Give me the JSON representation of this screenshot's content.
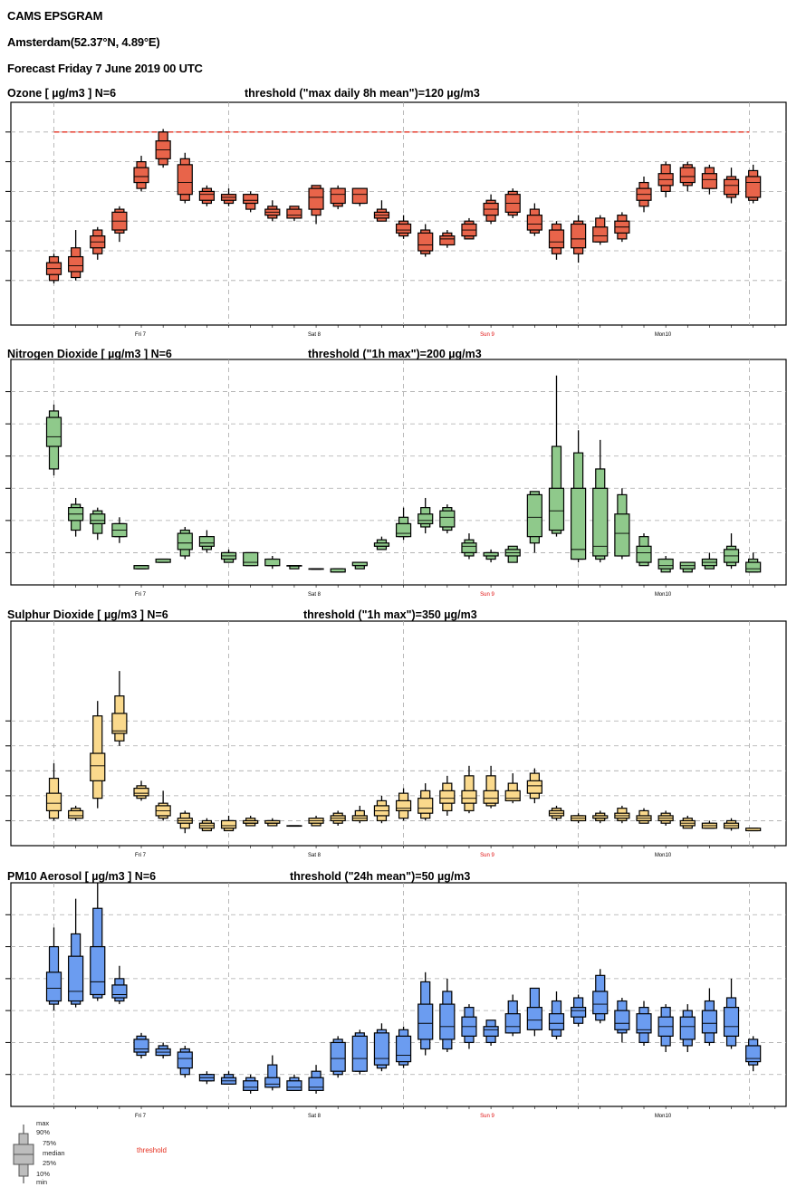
{
  "header": {
    "title": "CAMS EPSGRAM",
    "location": "Amsterdam(52.37°N, 4.89°E)",
    "forecast": "Forecast Friday  7 June 2019 00 UTC"
  },
  "days": [
    {
      "label": "Fri 7",
      "color": "#000000"
    },
    {
      "label": "Sat 8",
      "color": "#000000"
    },
    {
      "label": "Sun 9",
      "color": "#e01010"
    },
    {
      "label": "Mon10",
      "color": "#000000"
    }
  ],
  "legend": {
    "labels": [
      "max",
      "90%",
      "75%",
      "median",
      "25%",
      "10%",
      "min"
    ],
    "threshold_label": "threshold"
  },
  "chart_data": [
    {
      "type": "box",
      "title": "Ozone [ µg/m3 ]   N=6",
      "threshold_text": "threshold (\"max daily 8h mean\")=120 µg/m3",
      "threshold": 120,
      "show_threshold": true,
      "color": "#e8644a",
      "ylim": [
        55,
        130
      ],
      "ytick_values": [
        70,
        80,
        90,
        100,
        110,
        120
      ],
      "boxes": [
        [
          69,
          70,
          72,
          74,
          76,
          78,
          79
        ],
        [
          70,
          71,
          73,
          75,
          78,
          81,
          87
        ],
        [
          77,
          79,
          81,
          83,
          85,
          87,
          88
        ],
        [
          83,
          86,
          87,
          90,
          93,
          94,
          95
        ],
        [
          100,
          101,
          103,
          105,
          108,
          110,
          112
        ],
        [
          108,
          109,
          111,
          114,
          117,
          120,
          121
        ],
        [
          96,
          97,
          99,
          103,
          109,
          111,
          113
        ],
        [
          95,
          96,
          97,
          99,
          100,
          101,
          102
        ],
        [
          95,
          96,
          97,
          98,
          99,
          99,
          101
        ],
        [
          93,
          94,
          96,
          97,
          99,
          99,
          100
        ],
        [
          90,
          91,
          92,
          93,
          94,
          95,
          97
        ],
        [
          90,
          91,
          91,
          92,
          94,
          95,
          95
        ],
        [
          89,
          92,
          94,
          98,
          101,
          102,
          102
        ],
        [
          94,
          95,
          96,
          99,
          101,
          101,
          102
        ],
        [
          95,
          96,
          96,
          99,
          101,
          101,
          101
        ],
        [
          90,
          90,
          91,
          92,
          93,
          94,
          97
        ],
        [
          84,
          85,
          86,
          87,
          89,
          90,
          92
        ],
        [
          78,
          79,
          80,
          82,
          86,
          87,
          89
        ],
        [
          81,
          82,
          82,
          84,
          85,
          86,
          87
        ],
        [
          84,
          84,
          85,
          87,
          89,
          90,
          91
        ],
        [
          89,
          90,
          92,
          94,
          96,
          97,
          99
        ],
        [
          91,
          92,
          93,
          96,
          99,
          100,
          101
        ],
        [
          85,
          86,
          87,
          89,
          92,
          94,
          96
        ],
        [
          77,
          79,
          81,
          83,
          87,
          89,
          90
        ],
        [
          76,
          79,
          81,
          84,
          89,
          90,
          92
        ],
        [
          82,
          83,
          83,
          85,
          88,
          91,
          92
        ],
        [
          83,
          84,
          86,
          88,
          90,
          92,
          93
        ],
        [
          93,
          95,
          97,
          99,
          101,
          103,
          105
        ],
        [
          98,
          100,
          102,
          104,
          106,
          109,
          110
        ],
        [
          100,
          102,
          103,
          105,
          108,
          109,
          110
        ],
        [
          99,
          101,
          101,
          104,
          106,
          108,
          109
        ],
        [
          96,
          98,
          99,
          102,
          104,
          105,
          108
        ],
        [
          96,
          97,
          98,
          103,
          105,
          107,
          109
        ]
      ]
    },
    {
      "type": "box",
      "title": "Nitrogen Dioxide [ µg/m3 ]   N=6",
      "threshold_text": "threshold (\"1h max\")=200 µg/m3",
      "threshold": 200,
      "show_threshold": false,
      "color": "#8fc98b",
      "ylim": [
        0,
        70
      ],
      "ytick_values": [
        10,
        20,
        30,
        40,
        50,
        60
      ],
      "boxes": [
        [
          34,
          36,
          43,
          46,
          52,
          54,
          56
        ],
        [
          15,
          17,
          20,
          22,
          24,
          25,
          27
        ],
        [
          14,
          16,
          19,
          20,
          22,
          23,
          24
        ],
        [
          13,
          15,
          15,
          17,
          19,
          19,
          21
        ],
        [
          5,
          5,
          5,
          6,
          6,
          6,
          6
        ],
        [
          7,
          7,
          7,
          8,
          8,
          8,
          8
        ],
        [
          8,
          9,
          11,
          13,
          16,
          17,
          18
        ],
        [
          10,
          11,
          12,
          13,
          15,
          15,
          17
        ],
        [
          7,
          7,
          8,
          9,
          10,
          10,
          11
        ],
        [
          6,
          6,
          6,
          7,
          10,
          10,
          10
        ],
        [
          5,
          6,
          6,
          6,
          8,
          8,
          9
        ],
        [
          5,
          5,
          6,
          6,
          6,
          6,
          6
        ],
        [
          5,
          5,
          5,
          5,
          5,
          5,
          5
        ],
        [
          4,
          4,
          4,
          4,
          5,
          5,
          5
        ],
        [
          5,
          5,
          6,
          6,
          7,
          7,
          7
        ],
        [
          11,
          11,
          12,
          12,
          13,
          14,
          15
        ],
        [
          14,
          15,
          15,
          16,
          19,
          21,
          24
        ],
        [
          16,
          18,
          19,
          20,
          22,
          24,
          27
        ],
        [
          16,
          17,
          18,
          21,
          23,
          24,
          25
        ],
        [
          8,
          9,
          10,
          12,
          13,
          14,
          16
        ],
        [
          7,
          8,
          9,
          9,
          10,
          10,
          11
        ],
        [
          7,
          7,
          9,
          10,
          11,
          12,
          12
        ],
        [
          10,
          13,
          15,
          21,
          28,
          29,
          29
        ],
        [
          15,
          16,
          17,
          23,
          30,
          43,
          65
        ],
        [
          7,
          8,
          8,
          11,
          30,
          41,
          48
        ],
        [
          7,
          8,
          9,
          12,
          30,
          36,
          45
        ],
        [
          8,
          9,
          9,
          16,
          22,
          28,
          30
        ],
        [
          6,
          6,
          7,
          10,
          12,
          15,
          16
        ],
        [
          4,
          4,
          5,
          6,
          8,
          8,
          9
        ],
        [
          4,
          4,
          5,
          6,
          7,
          7,
          7
        ],
        [
          5,
          5,
          6,
          7,
          8,
          8,
          10
        ],
        [
          5,
          6,
          7,
          9,
          11,
          12,
          16
        ],
        [
          4,
          4,
          4,
          5,
          7,
          8,
          10
        ]
      ]
    },
    {
      "type": "box",
      "title": "Sulphur Dioxide [ µg/m3 ]   N=6",
      "threshold_text": "threshold (\"1h max\")=350 µg/m3",
      "threshold": 350,
      "show_threshold": false,
      "color": "#fad98c",
      "ylim": [
        0,
        9
      ],
      "ytick_values": [
        1,
        2,
        3,
        4,
        5
      ],
      "boxes": [
        [
          1.0,
          1.1,
          1.4,
          1.7,
          2.1,
          2.7,
          3.3
        ],
        [
          1.0,
          1.1,
          1.1,
          1.2,
          1.4,
          1.5,
          1.6
        ],
        [
          1.5,
          1.9,
          2.6,
          3.2,
          3.7,
          5.2,
          5.8
        ],
        [
          4.0,
          4.2,
          4.5,
          4.6,
          5.3,
          6.0,
          7.0
        ],
        [
          1.8,
          1.9,
          2.0,
          2.1,
          2.3,
          2.4,
          2.6
        ],
        [
          1.0,
          1.1,
          1.2,
          1.4,
          1.6,
          1.7,
          2.2
        ],
        [
          0.5,
          0.7,
          0.9,
          1.0,
          1.1,
          1.3,
          1.4
        ],
        [
          0.6,
          0.6,
          0.7,
          0.8,
          0.9,
          1.0,
          1.1
        ],
        [
          0.6,
          0.6,
          0.7,
          0.8,
          1.0,
          1.0,
          1.2
        ],
        [
          0.8,
          0.8,
          0.9,
          0.9,
          1.0,
          1.1,
          1.2
        ],
        [
          0.8,
          0.8,
          0.9,
          0.9,
          1.0,
          1.0,
          1.1
        ],
        [
          0.8,
          0.8,
          0.8,
          0.8,
          0.8,
          0.8,
          0.8
        ],
        [
          0.8,
          0.8,
          0.9,
          1.0,
          1.1,
          1.1,
          1.2
        ],
        [
          0.8,
          0.9,
          1.0,
          1.1,
          1.2,
          1.3,
          1.4
        ],
        [
          0.9,
          1.0,
          1.0,
          1.1,
          1.2,
          1.4,
          1.6
        ],
        [
          0.9,
          1.0,
          1.2,
          1.4,
          1.6,
          1.8,
          2.0
        ],
        [
          1.0,
          1.1,
          1.4,
          1.5,
          1.8,
          2.1,
          2.3
        ],
        [
          1.0,
          1.1,
          1.3,
          1.5,
          1.9,
          2.2,
          2.5
        ],
        [
          1.2,
          1.4,
          1.7,
          1.9,
          2.2,
          2.5,
          2.8
        ],
        [
          1.3,
          1.4,
          1.7,
          1.9,
          2.2,
          2.8,
          3.2
        ],
        [
          1.5,
          1.6,
          1.7,
          1.9,
          2.2,
          2.8,
          3.2
        ],
        [
          1.7,
          1.8,
          1.8,
          1.9,
          2.2,
          2.5,
          2.9
        ],
        [
          1.7,
          1.9,
          2.1,
          2.4,
          2.6,
          2.9,
          3.1
        ],
        [
          1.0,
          1.1,
          1.2,
          1.3,
          1.4,
          1.5,
          1.6
        ],
        [
          0.9,
          1.0,
          1.0,
          1.1,
          1.2,
          1.2,
          1.3
        ],
        [
          0.9,
          1.0,
          1.1,
          1.1,
          1.2,
          1.3,
          1.4
        ],
        [
          0.9,
          1.0,
          1.1,
          1.2,
          1.3,
          1.5,
          1.6
        ],
        [
          0.9,
          0.9,
          1.0,
          1.1,
          1.2,
          1.4,
          1.5
        ],
        [
          0.8,
          0.9,
          1.0,
          1.1,
          1.2,
          1.3,
          1.4
        ],
        [
          0.7,
          0.7,
          0.8,
          0.9,
          1.0,
          1.1,
          1.2
        ],
        [
          0.7,
          0.7,
          0.7,
          0.8,
          0.9,
          0.9,
          1.0
        ],
        [
          0.6,
          0.7,
          0.7,
          0.8,
          0.9,
          1.0,
          1.1
        ],
        [
          0.6,
          0.6,
          0.6,
          0.6,
          0.7,
          0.7,
          0.7
        ]
      ]
    },
    {
      "type": "box",
      "title": "PM10 Aerosol [ µg/m3 ]   N=6",
      "threshold_text": "threshold (\"24h mean\")=50 µg/m3",
      "threshold": 50,
      "show_threshold": false,
      "color": "#6b9cf0",
      "ylim": [
        0,
        35
      ],
      "ytick_values": [
        5,
        10,
        15,
        20,
        25,
        30
      ],
      "boxes": [
        [
          15.0,
          16.0,
          16.5,
          18.5,
          21.0,
          25.0,
          28.0
        ],
        [
          15.5,
          16.0,
          16.5,
          18.0,
          23.5,
          27.0,
          32.5
        ],
        [
          16.5,
          17.0,
          17.5,
          19.5,
          25.0,
          31.0,
          35.0
        ],
        [
          16.0,
          16.5,
          17.0,
          17.5,
          19.0,
          20.0,
          22.0
        ],
        [
          7.5,
          8.0,
          8.5,
          9.0,
          10.5,
          11.0,
          11.5
        ],
        [
          7.5,
          8.0,
          8.0,
          8.5,
          9.0,
          9.5,
          10.0
        ],
        [
          4.5,
          5.0,
          6.0,
          7.5,
          8.5,
          9.0,
          9.5
        ],
        [
          3.5,
          4.0,
          4.0,
          4.5,
          5.0,
          5.0,
          5.5
        ],
        [
          3.5,
          3.5,
          3.5,
          4.0,
          4.5,
          5.0,
          5.5
        ],
        [
          2.0,
          2.5,
          2.5,
          3.0,
          4.0,
          4.5,
          5.0
        ],
        [
          2.5,
          3.0,
          3.0,
          3.5,
          4.5,
          6.5,
          8.0
        ],
        [
          2.5,
          2.5,
          2.5,
          3.0,
          4.0,
          4.5,
          5.0
        ],
        [
          2.0,
          2.5,
          2.5,
          3.0,
          4.5,
          5.5,
          6.5
        ],
        [
          4.5,
          5.0,
          5.5,
          7.5,
          10.0,
          10.5,
          11.0
        ],
        [
          5.0,
          5.5,
          5.5,
          7.5,
          11.0,
          11.5,
          12.0
        ],
        [
          5.5,
          6.0,
          6.5,
          7.5,
          11.5,
          12.0,
          13.0
        ],
        [
          6.0,
          6.5,
          7.0,
          8.0,
          11.0,
          12.0,
          12.5
        ],
        [
          8.0,
          9.0,
          10.5,
          13.0,
          16.0,
          19.5,
          21.0
        ],
        [
          8.5,
          9.0,
          10.5,
          12.5,
          16.0,
          18.0,
          20.0
        ],
        [
          9.0,
          10.0,
          11.0,
          12.5,
          14.0,
          15.5,
          16.0
        ],
        [
          9.5,
          10.0,
          11.0,
          12.0,
          12.5,
          13.5,
          13.5
        ],
        [
          11.0,
          11.5,
          11.5,
          12.5,
          14.5,
          16.5,
          17.5
        ],
        [
          11.0,
          12.0,
          12.0,
          13.5,
          15.5,
          18.5,
          18.5
        ],
        [
          10.5,
          11.0,
          12.0,
          13.0,
          14.5,
          16.5,
          18.0
        ],
        [
          12.5,
          13.0,
          14.0,
          15.0,
          15.5,
          17.0,
          17.5
        ],
        [
          13.0,
          13.5,
          14.5,
          16.0,
          18.0,
          20.5,
          21.5
        ],
        [
          10.0,
          11.5,
          12.0,
          13.0,
          15.0,
          16.5,
          17.0
        ],
        [
          9.5,
          10.0,
          11.5,
          12.0,
          14.5,
          15.5,
          16.5
        ],
        [
          8.5,
          9.5,
          11.0,
          12.5,
          14.0,
          15.5,
          16.0
        ],
        [
          8.5,
          9.5,
          10.5,
          12.5,
          14.0,
          15.0,
          16.0
        ],
        [
          9.5,
          10.0,
          11.5,
          13.0,
          15.0,
          16.5,
          18.5
        ],
        [
          9.0,
          9.5,
          11.0,
          12.5,
          15.5,
          17.0,
          20.0
        ],
        [
          5.5,
          6.5,
          7.0,
          7.5,
          9.5,
          10.5,
          11.0
        ]
      ]
    }
  ]
}
